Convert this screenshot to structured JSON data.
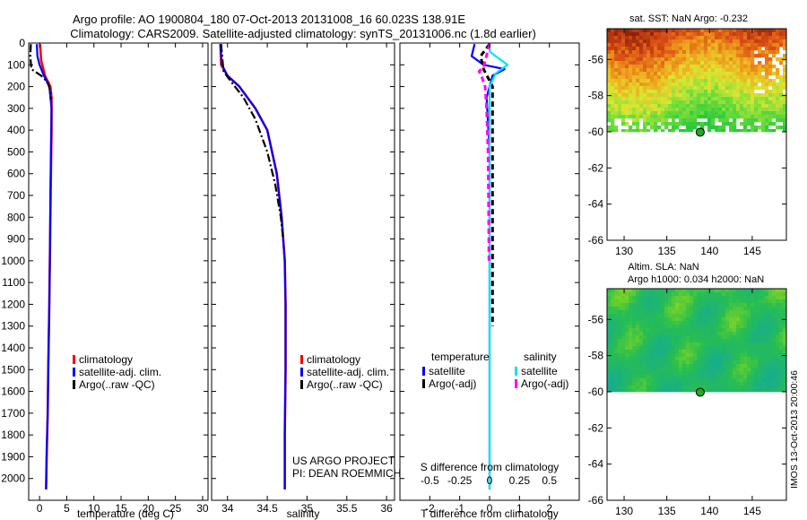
{
  "title_line1": "Argo profile: AO 1900804_180 07-Oct-2013 20131008_16 60.023S 138.91E",
  "title_line2": "Climatology: CARS2009. Satellite-adjusted climatology: synTS_20131006.nc (1.8d earlier)",
  "project_line1": "US ARGO PROJECT",
  "project_line2": "PI: DEAN ROEMMICH",
  "imos_stamp": "IMOS 13-Oct-2013 20:00:46",
  "colors": {
    "climatology": "#ff0000",
    "satellite": "#0000ff",
    "argo": "#000000",
    "sal_satellite": "#00e5ee",
    "sal_argo": "#ff00ff"
  },
  "chart_data": [
    {
      "type": "line",
      "xlabel": "temperature (deg C)",
      "ylabel": "",
      "xlim": [
        -2,
        31
      ],
      "ylim": [
        2100,
        0
      ],
      "xticks": [
        "0",
        "5",
        "10",
        "15",
        "20",
        "25",
        "30"
      ],
      "yticks": [
        "0",
        "100",
        "200",
        "300",
        "400",
        "500",
        "600",
        "700",
        "800",
        "900",
        "1000",
        "1100",
        "1200",
        "1300",
        "1400",
        "1500",
        "1600",
        "1700",
        "1800",
        "1900",
        "2000"
      ],
      "legend": [
        "climatology",
        "satellite-adj. clim.",
        "Argo(..raw -QC)"
      ],
      "series": [
        {
          "name": "climatology",
          "x": [
            0.1,
            0.3,
            1.0,
            2.0,
            2.2,
            2.2,
            2.1,
            2.0,
            1.9,
            1.8,
            1.6,
            1.5,
            1.3,
            1.2
          ],
          "y": [
            5,
            80,
            150,
            200,
            250,
            400,
            600,
            800,
            1000,
            1200,
            1500,
            1700,
            1900,
            2050
          ]
        },
        {
          "name": "satellite-adj. clim.",
          "x": [
            -0.5,
            -0.4,
            0.0,
            0.8,
            1.8,
            2.2,
            2.1,
            2.0,
            1.9,
            1.8,
            1.6,
            1.5,
            1.3,
            1.2
          ],
          "y": [
            5,
            60,
            100,
            150,
            200,
            300,
            500,
            700,
            1000,
            1200,
            1500,
            1700,
            1900,
            2050
          ]
        },
        {
          "name": "Argo(..raw -QC)",
          "x": [
            -1.6,
            -1.7,
            -1.5,
            0.3,
            1.5,
            2.0,
            2.1
          ],
          "y": [
            5,
            60,
            120,
            150,
            180,
            220,
            260
          ]
        }
      ]
    },
    {
      "type": "line",
      "xlabel": "salinity",
      "ylabel": "",
      "xlim": [
        33.8,
        36.1
      ],
      "ylim": [
        2100,
        0
      ],
      "xticks": [
        "34",
        "34.5",
        "35",
        "35.5",
        "36"
      ],
      "legend": [
        "climatology",
        "satellite-adj. clim.",
        "Argo(..raw -QC)"
      ],
      "series": [
        {
          "name": "climatology",
          "x": [
            33.91,
            33.92,
            34.0,
            34.15,
            34.35,
            34.5,
            34.62,
            34.68,
            34.72,
            34.73,
            34.73,
            34.72,
            34.72
          ],
          "y": [
            5,
            100,
            150,
            200,
            300,
            400,
            600,
            800,
            1000,
            1200,
            1500,
            1800,
            2050
          ]
        },
        {
          "name": "satellite-adj. clim.",
          "x": [
            33.91,
            33.93,
            34.0,
            34.15,
            34.35,
            34.5,
            34.62,
            34.68,
            34.72,
            34.73,
            34.73,
            34.72,
            34.72
          ],
          "y": [
            5,
            100,
            150,
            200,
            300,
            400,
            600,
            800,
            1000,
            1200,
            1500,
            1800,
            2050
          ]
        },
        {
          "name": "Argo(..raw -QC)",
          "x": [
            33.92,
            33.93,
            33.95,
            34.05,
            34.2,
            34.35,
            34.5,
            34.6,
            34.67,
            34.7
          ],
          "y": [
            5,
            50,
            130,
            180,
            250,
            350,
            500,
            650,
            800,
            900
          ]
        }
      ]
    },
    {
      "type": "line",
      "xlabel": "T difference from climatology",
      "title": "S difference from climatology",
      "xlim": [
        -3,
        3
      ],
      "ylim": [
        2100,
        0
      ],
      "xticks": [
        "-2",
        "-1",
        "0",
        "1",
        "2"
      ],
      "xticks_top": [
        "-0.5",
        "-0.25",
        "0",
        "0.25",
        "0.5"
      ],
      "legend": [
        "temperature",
        "satellite",
        "Argo(-adj)",
        "salinity",
        "satellite",
        "Argo(-adj)"
      ],
      "series": [
        {
          "name": "temperature satellite",
          "x": [
            -0.5,
            -0.6,
            -0.2,
            0.5,
            0.1,
            -0.1,
            0.0,
            0.0,
            0.0
          ],
          "y": [
            5,
            60,
            100,
            120,
            150,
            250,
            500,
            1000,
            2050
          ]
        },
        {
          "name": "temperature Argo(-adj)",
          "x": [
            0.0,
            -0.3,
            -0.2,
            0.1,
            0.1,
            0.1,
            0.1,
            0.1
          ],
          "y": [
            5,
            60,
            120,
            200,
            300,
            700,
            1000,
            1300
          ]
        },
        {
          "name": "salinity satellite",
          "x": [
            0.0,
            0.01,
            0.3,
            0.6,
            0.2,
            0.0,
            0.0,
            0.0
          ],
          "y": [
            5,
            40,
            70,
            100,
            140,
            200,
            1000,
            2050
          ]
        },
        {
          "name": "salinity Argo(-adj)",
          "x": [
            0.0,
            -0.2,
            -0.35,
            -0.25,
            -0.15,
            -0.1,
            -0.05,
            -0.03,
            -0.02
          ],
          "y": [
            5,
            110,
            130,
            160,
            200,
            300,
            500,
            800,
            1000
          ]
        }
      ]
    },
    {
      "type": "heatmap",
      "title": "sat. SST: NaN Argo: -0.232",
      "xlim": [
        128,
        149
      ],
      "ylim": [
        -66,
        -54.3
      ],
      "xticks": [
        "130",
        "135",
        "140",
        "145"
      ],
      "yticks": [
        "-56",
        "-58",
        "-60",
        "-62",
        "-64",
        "-66"
      ],
      "marker": {
        "lon": 138.91,
        "lat": -60.023
      }
    },
    {
      "type": "heatmap",
      "title_line1": "Altim. SLA: NaN",
      "title_line2": "Argo h1000: 0.034 h2000: NaN",
      "xlim": [
        128,
        149
      ],
      "ylim": [
        -66,
        -54.3
      ],
      "xticks": [
        "130",
        "135",
        "140",
        "145"
      ],
      "yticks": [
        "-56",
        "-58",
        "-60",
        "-62",
        "-64",
        "-66"
      ],
      "marker": {
        "lon": 138.91,
        "lat": -60.023
      }
    }
  ]
}
